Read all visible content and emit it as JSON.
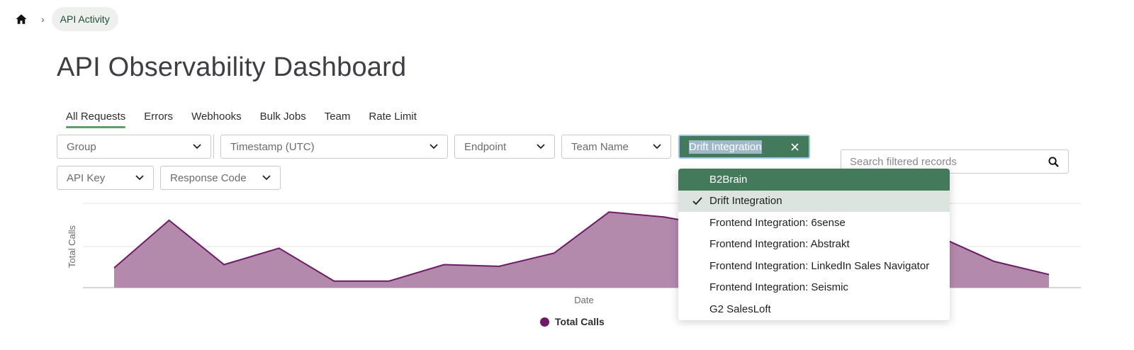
{
  "breadcrumb": {
    "home_icon": "home-icon",
    "current": "API Activity"
  },
  "page": {
    "title": "API Observability Dashboard"
  },
  "tabs": [
    {
      "label": "All Requests",
      "active": true
    },
    {
      "label": "Errors"
    },
    {
      "label": "Webhooks"
    },
    {
      "label": "Bulk Jobs"
    },
    {
      "label": "Team"
    },
    {
      "label": "Rate Limit"
    }
  ],
  "filters": {
    "group": "Group",
    "timestamp": "Timestamp (UTC)",
    "endpoint": "Endpoint",
    "team_name": "Team Name",
    "integration": "Drift Integration",
    "api_key": "API Key",
    "response_code": "Response Code"
  },
  "search": {
    "placeholder": "Search filtered records"
  },
  "dropdown": {
    "options": [
      {
        "label": "B2Brain",
        "state": "hover"
      },
      {
        "label": "Drift Integration",
        "state": "selected"
      },
      {
        "label": "Frontend Integration: 6sense"
      },
      {
        "label": "Frontend Integration: Abstrakt"
      },
      {
        "label": "Frontend Integration: LinkedIn Sales Navigator"
      },
      {
        "label": "Frontend Integration: Seismic"
      },
      {
        "label": "G2 SalesLoft"
      }
    ]
  },
  "colors": {
    "accent": "#437a5c",
    "series_fill": "#b48aac",
    "series_line": "#6e1a68"
  },
  "chart_data": {
    "type": "area",
    "ylabel": "Total Calls",
    "xlabel": "Date",
    "grid": true,
    "legend": "bottom-center",
    "series": [
      {
        "name": "Total Calls",
        "values": [
          0.24,
          0.82,
          0.28,
          0.48,
          0.08,
          0.08,
          0.28,
          0.26,
          0.42,
          0.92,
          0.86,
          0.74,
          0.66,
          0.62,
          0.54,
          0.62,
          0.32,
          0.16
        ]
      }
    ],
    "ylim": [
      0,
      1
    ]
  }
}
